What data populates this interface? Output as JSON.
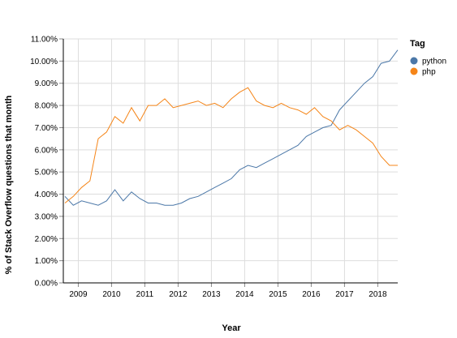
{
  "chart_data": {
    "type": "line",
    "x_label": "Year",
    "y_label": "% of Stack Overflow questions that month",
    "legend_title": "Tag",
    "legend_position": "top-right",
    "grid": true,
    "x": [
      2008.6,
      2008.85,
      2009.1,
      2009.35,
      2009.6,
      2009.85,
      2010.1,
      2010.35,
      2010.6,
      2010.85,
      2011.1,
      2011.35,
      2011.6,
      2011.85,
      2012.1,
      2012.35,
      2012.6,
      2012.85,
      2013.1,
      2013.35,
      2013.6,
      2013.85,
      2014.1,
      2014.35,
      2014.6,
      2014.85,
      2015.1,
      2015.35,
      2015.6,
      2015.85,
      2016.1,
      2016.35,
      2016.6,
      2016.85,
      2017.1,
      2017.35,
      2017.6,
      2017.85,
      2018.1,
      2018.35,
      2018.6
    ],
    "series": [
      {
        "name": "python",
        "color": "#4c78a8",
        "values": [
          3.9,
          3.5,
          3.7,
          3.6,
          3.5,
          3.7,
          4.2,
          3.7,
          4.1,
          3.8,
          3.6,
          3.6,
          3.5,
          3.5,
          3.6,
          3.8,
          3.9,
          4.1,
          4.3,
          4.5,
          4.7,
          5.1,
          5.3,
          5.2,
          5.4,
          5.6,
          5.8,
          6.0,
          6.2,
          6.6,
          6.8,
          7.0,
          7.1,
          7.8,
          8.2,
          8.6,
          9.0,
          9.3,
          9.9,
          10.0,
          10.5
        ]
      },
      {
        "name": "php",
        "color": "#f58518",
        "values": [
          3.6,
          3.9,
          4.3,
          4.6,
          6.5,
          6.8,
          7.5,
          7.2,
          7.9,
          7.3,
          8.0,
          8.0,
          8.3,
          7.9,
          8.0,
          8.1,
          8.2,
          8.0,
          8.1,
          7.9,
          8.3,
          8.6,
          8.8,
          8.2,
          8.0,
          7.9,
          8.1,
          7.9,
          7.8,
          7.6,
          7.9,
          7.5,
          7.3,
          6.9,
          7.1,
          6.9,
          6.6,
          6.3,
          5.7,
          5.3,
          5.3
        ]
      }
    ],
    "xlim": [
      2008.55,
      2018.6
    ],
    "xticks": [
      2009,
      2010,
      2011,
      2012,
      2013,
      2014,
      2015,
      2016,
      2017,
      2018
    ],
    "ylim": [
      0,
      11
    ],
    "yticks": [
      {
        "value": 0,
        "label": "0.00%"
      },
      {
        "value": 1,
        "label": "1.00%"
      },
      {
        "value": 2,
        "label": "2.00%"
      },
      {
        "value": 3,
        "label": "3.00%"
      },
      {
        "value": 4,
        "label": "4.00%"
      },
      {
        "value": 5,
        "label": "5.00%"
      },
      {
        "value": 6,
        "label": "6.00%"
      },
      {
        "value": 7,
        "label": "7.00%"
      },
      {
        "value": 8,
        "label": "8.00%"
      },
      {
        "value": 9,
        "label": "9.00%"
      },
      {
        "value": 10,
        "label": "10.00%"
      },
      {
        "value": 11,
        "label": "11.00%"
      }
    ]
  }
}
